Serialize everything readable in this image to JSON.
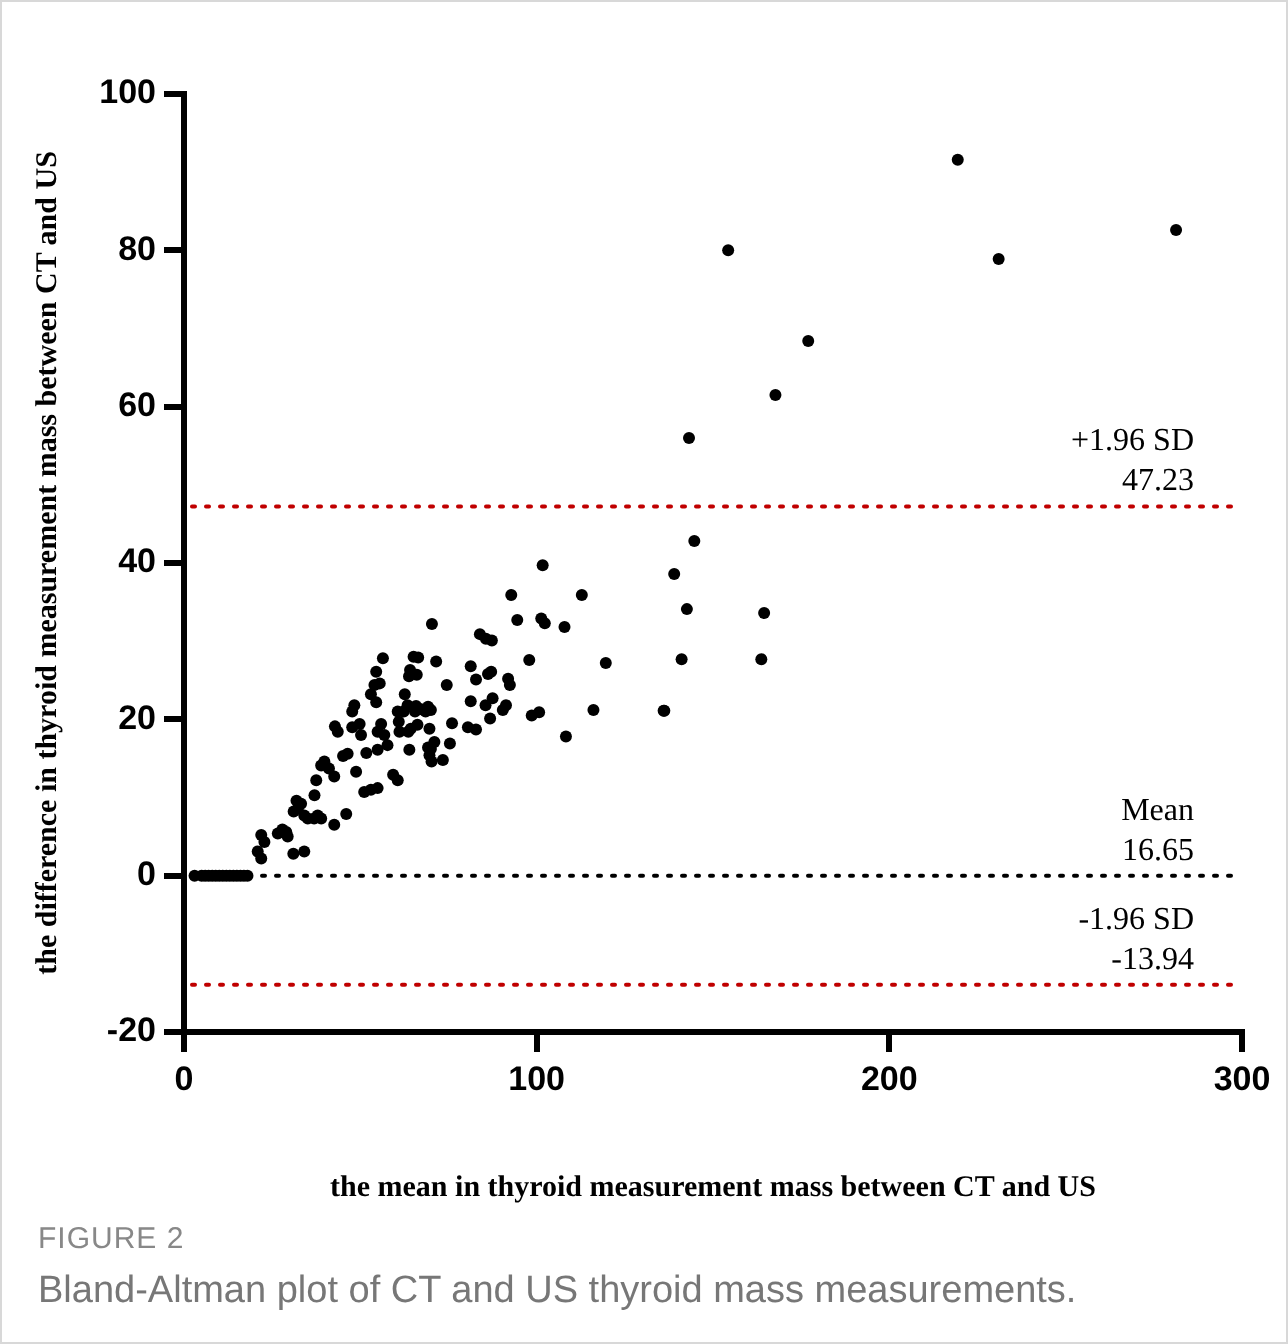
{
  "chart_data": {
    "type": "scatter",
    "xlabel": "the mean in thyroid measurement mass between CT and US",
    "ylabel": "the difference in thyroid measurement mass between CT and US",
    "xlim": [
      0,
      300
    ],
    "xticks": [
      0,
      100,
      200,
      300
    ],
    "ylim": [
      -20,
      100
    ],
    "yticks": [
      -20,
      0,
      20,
      40,
      60,
      80,
      100
    ],
    "marker": "circle",
    "series": [
      {
        "color": "#000000",
        "x": [
          219.4,
          281.3,
          154.3,
          231,
          177,
          167.7,
          143.2,
          144.7,
          139,
          142.6,
          164.5,
          141.1,
          163.7,
          136.2,
          101.7,
          92.8,
          112.8,
          70.3,
          94.5,
          101.3,
          102.3,
          107.9,
          83.9,
          85.6,
          87.3,
          65.1,
          71.5,
          97.9,
          119.6,
          81.3,
          82.8,
          86.2,
          87.1,
          74.5,
          64.1,
          66,
          91.9,
          92.4,
          62.6,
          81.3,
          85.5,
          87.5,
          91.3,
          90.4,
          65.5,
          67.3,
          69.2,
          62.3,
          86.8,
          98.6,
          100.7,
          116.1,
          136,
          76,
          80.5,
          82.8,
          63.6,
          69.6,
          108.3,
          75.4,
          69.2,
          63.9,
          69.6,
          73.4,
          70.2,
          66.4,
          56.4,
          54.5,
          55.5,
          54,
          63.8,
          53,
          54.5,
          48.3,
          47.7,
          63.4,
          65.8,
          68.5,
          70,
          42.8,
          43.6,
          47.7,
          49.8,
          50.2,
          55.9,
          54.9,
          56.8,
          60.6,
          60.9,
          61.1,
          64.3,
          66.2,
          71,
          70,
          38.9,
          39.8,
          41.1,
          45.1,
          46.4,
          51.7,
          54.9,
          57.7,
          48.8,
          42.6,
          37.5,
          59.3,
          60.6,
          51.1,
          53,
          54.9,
          37,
          31.9,
          33.2,
          32.3,
          31.1,
          34.1,
          35.1,
          37.9,
          38.9,
          42.6,
          46,
          29,
          29.4,
          27.9,
          26.6,
          36.9,
          21.9,
          22.8,
          20.9,
          21.9,
          31,
          34.1,
          3,
          5,
          6,
          7,
          8,
          9,
          10,
          11,
          12,
          13,
          14,
          15,
          16,
          17,
          18
        ],
        "values": [
          91.6,
          82.6,
          80,
          78.9,
          68.4,
          61.5,
          56,
          42.8,
          38.6,
          34.1,
          33.6,
          27.7,
          27.7,
          21.1,
          39.7,
          35.9,
          35.9,
          32.2,
          32.7,
          32.9,
          32.3,
          31.8,
          30.9,
          30.3,
          30.1,
          28,
          27.4,
          27.6,
          27.2,
          26.8,
          25.1,
          25.8,
          26.1,
          24.4,
          26.3,
          25.7,
          25.2,
          24.4,
          23.2,
          22.3,
          21.8,
          22.7,
          21.8,
          21.2,
          21,
          21.3,
          21.6,
          21,
          20.1,
          20.5,
          20.9,
          21.2,
          21.1,
          19.5,
          19,
          18.7,
          18.4,
          18.8,
          17.8,
          16.9,
          16.4,
          16.1,
          15.4,
          14.8,
          14.6,
          27.9,
          27.8,
          26.1,
          24.6,
          24.4,
          25.5,
          23.2,
          22.2,
          21.8,
          21,
          21.8,
          21.7,
          21,
          21.2,
          19.1,
          18.4,
          19,
          19.4,
          18,
          19.4,
          18.4,
          18,
          21,
          19.7,
          18.4,
          18.8,
          19.3,
          17.1,
          16.2,
          14.1,
          14.6,
          13.7,
          15.3,
          15.6,
          15.7,
          16.1,
          16.7,
          13.3,
          12.7,
          12.2,
          12.9,
          12.2,
          10.7,
          11,
          11.2,
          10.3,
          9.6,
          9.2,
          8.6,
          8.2,
          7.7,
          7.3,
          7.7,
          7.3,
          6.5,
          7.9,
          5.6,
          5,
          5.9,
          5.4,
          7.3,
          5.2,
          4.3,
          3.1,
          2.2,
          2.8,
          3.1,
          0,
          0,
          0,
          0,
          0,
          0,
          0,
          0,
          0,
          0,
          0,
          0,
          0,
          0,
          0
        ]
      }
    ],
    "ref_lines": [
      {
        "axis": "y",
        "value": 47.23,
        "label": "+1.96 SD\n47.23",
        "color": "#c00000",
        "line_style": "dotted"
      },
      {
        "axis": "y",
        "value": 0,
        "label": "Mean\n16.65",
        "color": "#000000",
        "line_style": "dotted"
      },
      {
        "axis": "y",
        "value": -13.94,
        "label": "-1.96 SD\n-13.94",
        "color": "#c00000",
        "line_style": "dotted"
      }
    ],
    "annotations": [
      "FIGURE 2",
      "Bland-Altman plot of CT and US thyroid mass measurements."
    ]
  }
}
